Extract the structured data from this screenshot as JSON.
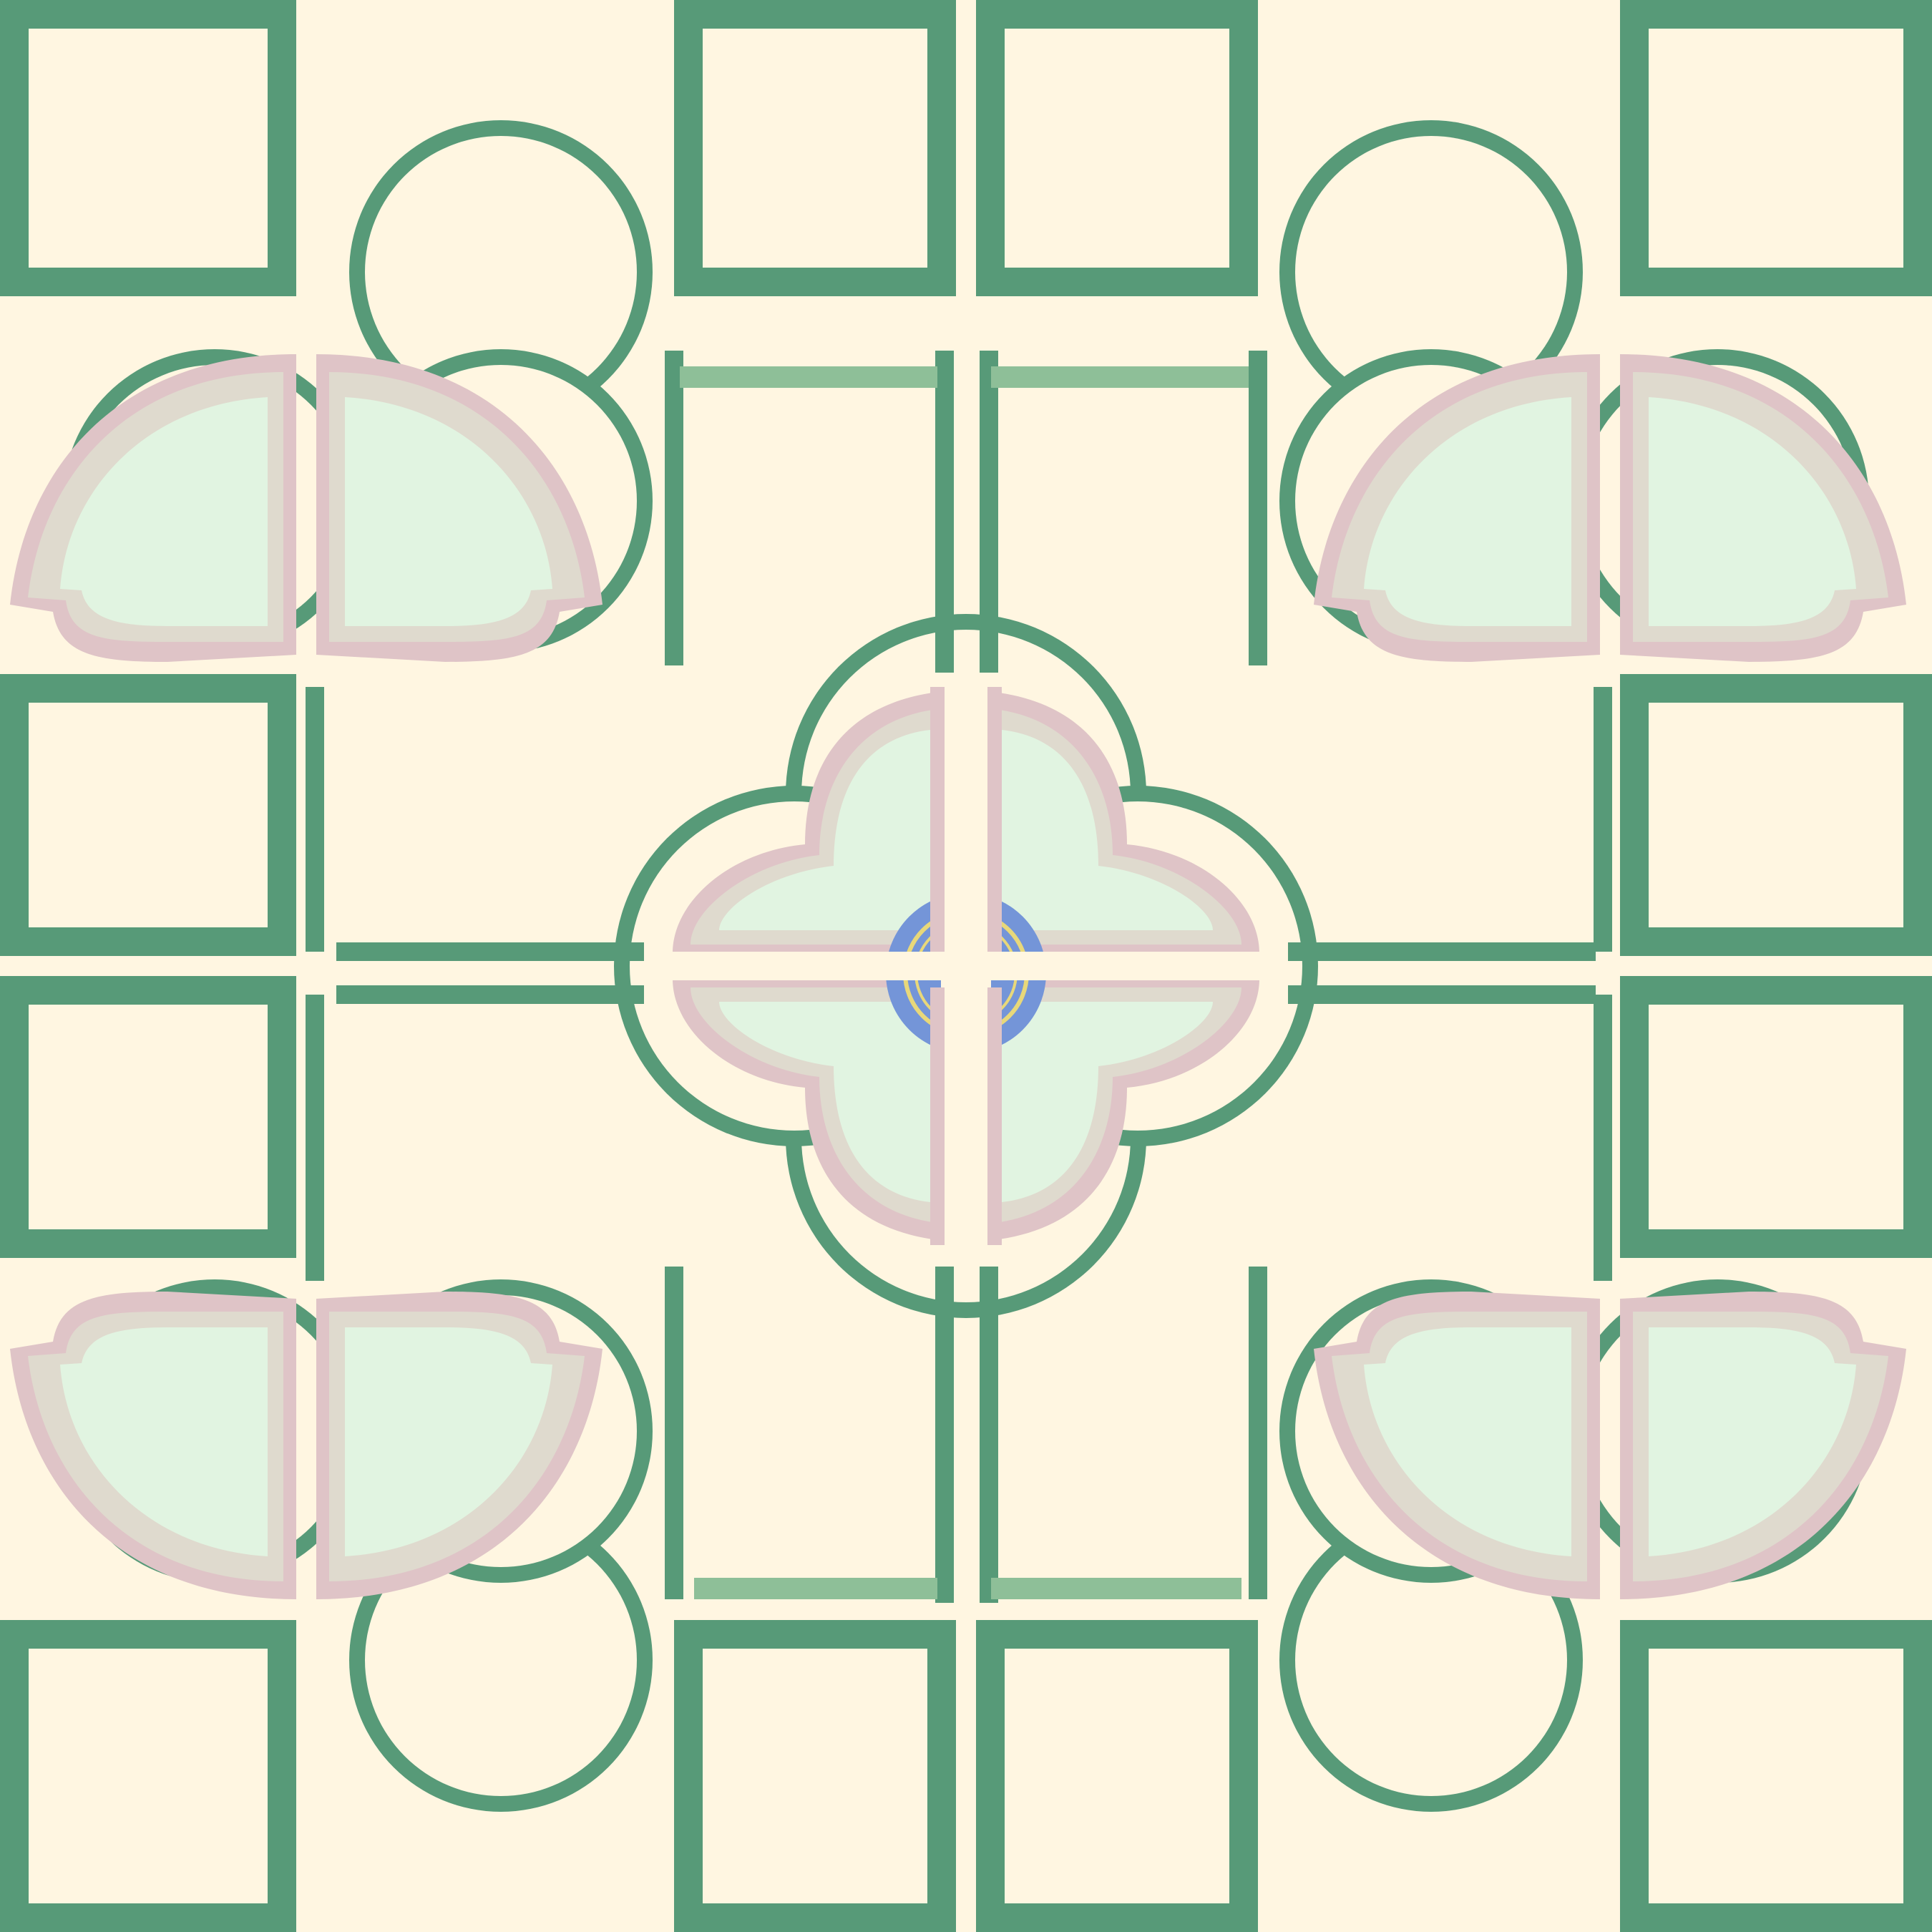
{
  "image": {
    "kind": "decorative-tile-pattern",
    "motifs": [
      "square-tile-grid",
      "corner-petal",
      "center-quatrefoil",
      "center-medallion"
    ]
  },
  "palette": {
    "background": "#fff6e1",
    "outline": "#579a78",
    "light_green_band": "#8ebf98",
    "petal_rose": "#dfc4c7",
    "petal_beige": "#dfdace",
    "petal_mint": "#e1f4e1",
    "medallion_blue": "#7495d8",
    "medallion_ring": "#e8d87a"
  }
}
